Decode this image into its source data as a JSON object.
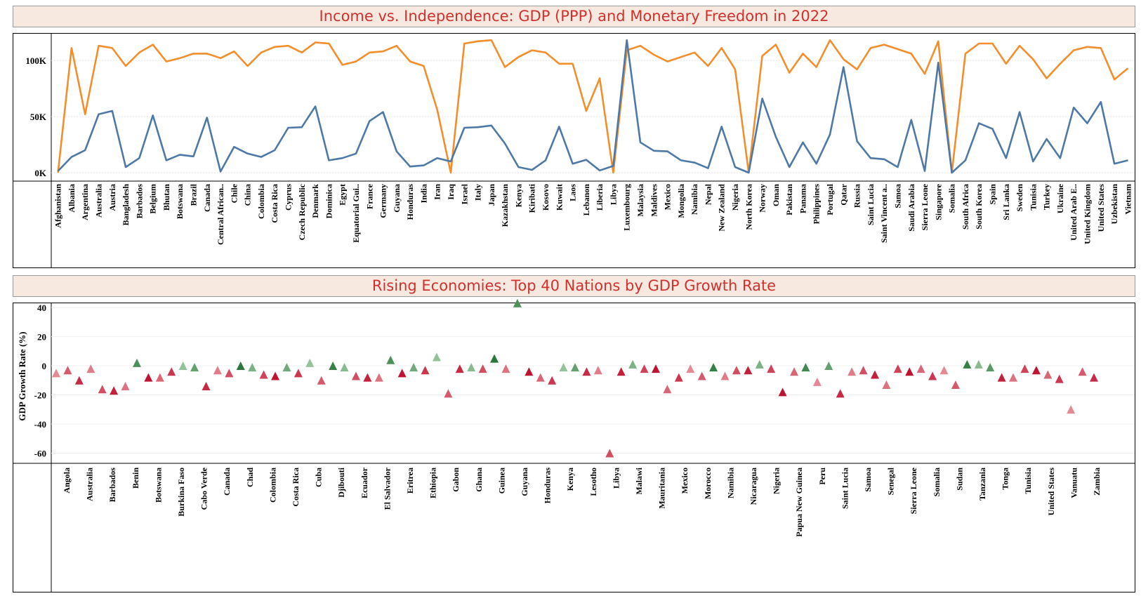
{
  "charts": {
    "top": {
      "title": "Income vs. Independence: GDP (PPP) and Monetary Freedom in 2022"
    },
    "bottom": {
      "title": "Rising Economies: Top 40 Nations by GDP Growth Rate"
    }
  },
  "colors": {
    "series_a": "#f28e2b",
    "series_b": "#4e79a7",
    "title_text": "#d0312d",
    "title_bg": "#f7e8e0"
  },
  "chart_data": [
    {
      "type": "line",
      "title": "Income vs. Independence: GDP (PPP) and Monetary Freedom in 2022",
      "xlabel": "",
      "ylabel": "",
      "y_ticks": [
        "0K",
        "50K",
        "100K"
      ],
      "ylim": [
        0,
        125000
      ],
      "categories": [
        "Afghanistan",
        "Albania",
        "Argentina",
        "Australia",
        "Austria",
        "Bangladesh",
        "Barbados",
        "Belgium",
        "Bhutan",
        "Botswana",
        "Brazil",
        "Canada",
        "Central African..",
        "Chile",
        "China",
        "Colombia",
        "Costa Rica",
        "Cyprus",
        "Czech Republic",
        "Denmark",
        "Dominica",
        "Egypt",
        "Equatorial Gui..",
        "France",
        "Germany",
        "Guyana",
        "Honduras",
        "India",
        "Iran",
        "Iraq",
        "Israel",
        "Italy",
        "Japan",
        "Kazakhstan",
        "Kenya",
        "Kiribati",
        "Kosovo",
        "Kuwait",
        "Laos",
        "Lebanon",
        "Liberia",
        "Libya",
        "Luxembourg",
        "Malaysia",
        "Maldives",
        "Mexico",
        "Mongolia",
        "Namibia",
        "Nepal",
        "New Zealand",
        "Nigeria",
        "North Korea",
        "Norway",
        "Oman",
        "Pakistan",
        "Panama",
        "Philippines",
        "Portugal",
        "Qatar",
        "Russia",
        "Saint Lucia",
        "Saint Vincent a..",
        "Samoa",
        "Saudi Arabia",
        "Sierra Leone",
        "Singapore",
        "Somalia",
        "South Africa",
        "South Korea",
        "Spain",
        "Sri Lanka",
        "Sweden",
        "Tunisia",
        "Turkey",
        "Ukraine",
        "United Arab E..",
        "United Kingdom",
        "United States",
        "Uzbekistan",
        "Vietnam"
      ],
      "series": [
        {
          "values": [
            0,
            111000,
            52000,
            113000,
            111000,
            95000,
            107000,
            114000,
            99000,
            102000,
            106000,
            106000,
            102000,
            108000,
            95000,
            107000,
            112000,
            113000,
            107000,
            116000,
            115000,
            96000,
            99000,
            107000,
            108000,
            113000,
            99000,
            95000,
            56000,
            0,
            115000,
            117000,
            118000,
            94000,
            103000,
            109000,
            107000,
            97000,
            97000,
            55000,
            84000,
            0,
            109000,
            113000,
            105000,
            99000,
            103000,
            107000,
            95000,
            111000,
            92000,
            0,
            104000,
            114000,
            89000,
            106000,
            94000,
            118000,
            101000,
            92000,
            111000,
            114000,
            110000,
            106000,
            88000,
            117000,
            0,
            106000,
            115000,
            115000,
            97000,
            113000,
            101000,
            84000,
            97000,
            109000,
            112000,
            111000,
            83000,
            93000
          ]
        },
        {
          "values": [
            1500,
            14000,
            20000,
            52000,
            55000,
            5000,
            13000,
            51000,
            11000,
            16000,
            14500,
            49000,
            1000,
            23000,
            17000,
            14000,
            20000,
            40000,
            40500,
            59000,
            11000,
            13000,
            17000,
            46000,
            54000,
            19000,
            5500,
            6500,
            13000,
            10000,
            40000,
            40500,
            42000,
            26000,
            5000,
            2500,
            11000,
            41000,
            8000,
            11500,
            2000,
            6000,
            118000,
            27000,
            19500,
            19000,
            11000,
            9000,
            4000,
            41000,
            5000,
            0,
            66000,
            32000,
            5000,
            27000,
            8000,
            34000,
            94000,
            28000,
            13000,
            12000,
            5000,
            47000,
            1500,
            98000,
            0,
            11000,
            44000,
            39000,
            13000,
            54000,
            10000,
            30000,
            13000,
            58000,
            44000,
            63000,
            8000,
            11000
          ]
        }
      ]
    },
    {
      "type": "scatter",
      "title": "Rising Economies: Top 40 Nations by GDP Growth Rate",
      "xlabel": "",
      "ylabel": "GDP Growth Rate (%)",
      "ylim": [
        -64,
        46
      ],
      "y_ticks": [
        40,
        20,
        0,
        -20,
        -40,
        -60
      ],
      "marker": "triangle",
      "color_scale": "diverging red (low) to green (high)",
      "x_tick_labels": [
        "Angola",
        "Australia",
        "Barbados",
        "Benin",
        "Botswana",
        "Burkina Faso",
        "Cabo Verde",
        "Canada",
        "Chad",
        "Colombia",
        "Costa Rica",
        "Cuba",
        "Djibouti",
        "Ecuador",
        "El Salvador",
        "Eritrea",
        "Ethiopia",
        "Gabon",
        "Ghana",
        "Guinea",
        "Guyana",
        "Honduras",
        "Kenya",
        "Lesotho",
        "Libya",
        "Malawi",
        "Mauritania",
        "Mexico",
        "Morocco",
        "Namibia",
        "Nicaragua",
        "Nigeria",
        "Papua New Guinea",
        "Peru",
        "Saint Lucia",
        "Samoa",
        "Senegal",
        "Sierra Leone",
        "Somalia",
        "Sudan",
        "Tanzania",
        "Tonga",
        "Tunisia",
        "United States",
        "Vanuatu",
        "Zambia"
      ],
      "points": [
        -5,
        -3,
        -10,
        -2,
        -16,
        -17,
        -14,
        2,
        -8,
        -8,
        -4,
        0,
        -1,
        -14,
        -3,
        -5,
        0,
        -1,
        -6,
        -7,
        -1,
        -5,
        2,
        -10,
        0,
        -1,
        -7,
        -8,
        -8,
        4,
        -5,
        -1,
        -3,
        6,
        -19,
        -2,
        -1,
        -2,
        5,
        -2,
        43,
        -4,
        -8,
        -10,
        -1,
        -1,
        -4,
        -3,
        -60,
        -4,
        1,
        -2,
        -2,
        -16,
        -8,
        -2,
        -7,
        -1,
        -7,
        -3,
        -3,
        1,
        -2,
        -18,
        -4,
        -1,
        -11,
        0,
        -19,
        -4,
        -3,
        -6,
        -13,
        -2,
        -4,
        -2,
        -7,
        -3,
        -13,
        1,
        1,
        -1,
        -8,
        -8,
        -2,
        -3,
        -6,
        -9,
        -30,
        -4,
        -8
      ]
    }
  ]
}
